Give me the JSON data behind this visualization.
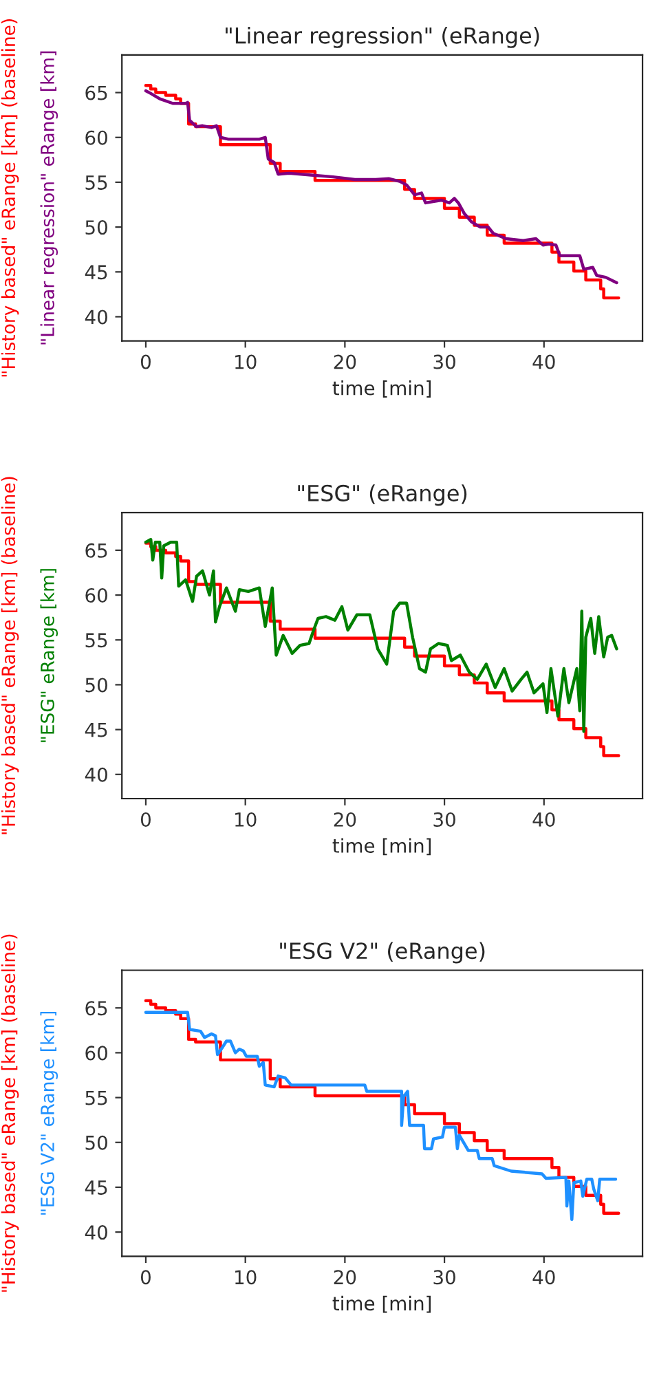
{
  "chart_data": [
    {
      "type": "line",
      "title": "\"Linear regression\" (eRange)",
      "xlabel": "time [min]",
      "xlim": [
        -2.4,
        49.9
      ],
      "ylim": [
        37.3,
        69.2
      ],
      "xticks": [
        0,
        10,
        20,
        30,
        40
      ],
      "yticks": [
        40,
        45,
        50,
        55,
        60,
        65
      ],
      "series": [
        {
          "name": "\"History based\" eRange [km] (baseline)",
          "type": "step",
          "color": "#ff0000",
          "x": [
            0,
            0.5,
            1,
            2,
            3,
            3.5,
            4.3,
            5,
            7.5,
            12.5,
            13.5,
            17,
            26,
            27,
            30,
            31.5,
            33,
            34.3,
            36,
            40.8,
            41.5,
            43,
            44.2,
            45.7,
            46,
            47.5
          ],
          "values": [
            65.8,
            65.4,
            65.0,
            64.7,
            64.3,
            63.8,
            61.5,
            61.2,
            59.2,
            57.1,
            56.2,
            55.2,
            54.2,
            53.2,
            52.1,
            51.1,
            50.2,
            49.1,
            48.2,
            47.2,
            46.1,
            45.1,
            44.1,
            43.1,
            42.1,
            42.1
          ]
        },
        {
          "name": "\"Linear regression\" eRange [km]",
          "color": "#800080",
          "x": [
            0,
            0.5,
            1.4,
            2.7,
            4,
            4.2,
            4.4,
            5.1,
            5.7,
            6.6,
            7.1,
            7.5,
            8.3,
            10.1,
            11.4,
            12,
            12.3,
            12.9,
            13.3,
            14.4,
            16.6,
            18.8,
            21,
            23.1,
            24.4,
            25.5,
            26.2,
            27,
            27.7,
            28.1,
            29.7,
            30.5,
            31,
            31.4,
            32,
            32.7,
            33.6,
            34.4,
            34.9,
            36.2,
            37.9,
            39.2,
            39.9,
            40.5,
            41.2,
            41.6,
            43.1,
            43.6,
            44,
            44.9,
            45.3,
            46.2,
            47.3
          ],
          "values": [
            65.2,
            64.9,
            64.3,
            63.8,
            63.8,
            63.9,
            61.9,
            61.2,
            61.3,
            61.1,
            61.3,
            60.0,
            59.8,
            59.8,
            59.8,
            60.0,
            57.6,
            57.2,
            55.9,
            56.0,
            55.8,
            55.6,
            55.3,
            55.3,
            55.4,
            55.1,
            54.7,
            53.6,
            53.8,
            52.7,
            53.0,
            52.7,
            53.2,
            52.7,
            51.5,
            50.6,
            50.0,
            50.0,
            49.3,
            48.7,
            48.5,
            48.7,
            48.0,
            48.1,
            48.0,
            46.8,
            46.8,
            46.8,
            45.3,
            45.5,
            44.6,
            44.4,
            43.8
          ]
        }
      ]
    },
    {
      "type": "line",
      "title": "\"ESG\" (eRange)",
      "xlabel": "time [min]",
      "xlim": [
        -2.4,
        49.9
      ],
      "ylim": [
        37.3,
        69.2
      ],
      "xticks": [
        0,
        10,
        20,
        30,
        40
      ],
      "yticks": [
        40,
        45,
        50,
        55,
        60,
        65
      ],
      "series": [
        {
          "name": "\"History based\" eRange [km] (baseline)",
          "type": "step",
          "color": "#ff0000",
          "x": [
            0,
            0.5,
            1,
            2,
            3,
            3.5,
            4.3,
            5,
            7.5,
            12.5,
            13.5,
            17,
            26,
            27,
            30,
            31.5,
            33,
            34.3,
            36,
            40.8,
            41.5,
            43,
            44.2,
            45.7,
            46,
            47.5
          ],
          "values": [
            65.8,
            65.4,
            65.0,
            64.7,
            64.3,
            63.8,
            61.5,
            61.2,
            59.2,
            57.1,
            56.2,
            55.2,
            54.2,
            53.2,
            52.1,
            51.1,
            50.2,
            49.1,
            48.2,
            47.2,
            46.1,
            45.1,
            44.1,
            43.1,
            42.1,
            42.1
          ]
        },
        {
          "name": "\"ESG\" eRange [km]",
          "color": "#008000",
          "x": [
            0,
            0.5,
            0.7,
            0.96,
            1.4,
            1.6,
            1.8,
            2.5,
            3.1,
            3.3,
            4,
            4.7,
            5.1,
            5.7,
            6.4,
            6.8,
            7,
            7.4,
            8.1,
            9,
            9.4,
            10.3,
            11.4,
            12,
            12.7,
            13.1,
            13.8,
            14.7,
            15.5,
            16.4,
            16.8,
            17.3,
            18.1,
            19,
            19.7,
            20.3,
            21.2,
            22.5,
            23.3,
            24.2,
            24.9,
            25.5,
            26.2,
            26.8,
            27.5,
            28.1,
            28.6,
            29.4,
            30.3,
            30.7,
            31.6,
            32.5,
            33.3,
            34.2,
            35.1,
            36,
            36.8,
            37.7,
            38.3,
            39,
            39.9,
            40.3,
            40.7,
            41.4,
            42,
            42.5,
            43.3,
            43.6,
            43.8,
            44,
            44.2,
            44.7,
            45.1,
            45.5,
            46,
            46.4,
            46.8,
            47.3
          ],
          "values": [
            65.9,
            66.2,
            63.9,
            65.9,
            65.9,
            61.9,
            65.5,
            65.9,
            65.9,
            61.0,
            61.7,
            59.3,
            62.1,
            62.7,
            60.0,
            62.7,
            57.0,
            58.7,
            60.8,
            58.2,
            60.6,
            60.4,
            60.8,
            56.5,
            60.8,
            53.3,
            55.5,
            53.5,
            54.4,
            54.6,
            55.9,
            57.4,
            57.6,
            57.2,
            58.7,
            56.1,
            57.8,
            57.8,
            54.0,
            52.3,
            58.2,
            59.1,
            59.1,
            55.3,
            51.8,
            51.4,
            54.0,
            54.6,
            54.4,
            52.7,
            53.3,
            51.4,
            50.6,
            52.3,
            49.7,
            51.8,
            49.3,
            50.6,
            51.4,
            49.1,
            50.1,
            46.9,
            51.8,
            46.5,
            51.8,
            48.0,
            51.8,
            47.1,
            58.2,
            44.8,
            55.3,
            57.4,
            53.5,
            57.6,
            53.1,
            55.3,
            55.5,
            54.0
          ]
        }
      ]
    },
    {
      "type": "line",
      "title": "\"ESG V2\" (eRange)",
      "xlabel": "time [min]",
      "xlim": [
        -2.4,
        49.9
      ],
      "ylim": [
        37.3,
        69.2
      ],
      "xticks": [
        0,
        10,
        20,
        30,
        40
      ],
      "yticks": [
        40,
        45,
        50,
        55,
        60,
        65
      ],
      "series": [
        {
          "name": "\"History based\" eRange [km] (baseline)",
          "type": "step",
          "color": "#ff0000",
          "x": [
            0,
            0.5,
            1,
            2,
            3,
            3.5,
            4.3,
            5,
            7.5,
            12.5,
            13.5,
            17,
            26,
            27,
            30,
            31.5,
            33,
            34.3,
            36,
            40.8,
            41.5,
            43,
            44.2,
            45.7,
            46,
            47.5
          ],
          "values": [
            65.8,
            65.4,
            65.0,
            64.7,
            64.3,
            63.8,
            61.5,
            61.2,
            59.2,
            57.1,
            56.2,
            55.2,
            54.2,
            53.2,
            52.1,
            51.1,
            50.2,
            49.1,
            48.2,
            47.2,
            46.1,
            45.1,
            44.1,
            43.1,
            42.1,
            42.1
          ]
        },
        {
          "name": "\"ESG V2\" eRange [km]",
          "color": "#1e90ff",
          "x": [
            0,
            4.2,
            4.4,
            5.5,
            5.9,
            6.6,
            7,
            7.2,
            7.7,
            8.1,
            8.5,
            9,
            9.4,
            9.8,
            10.1,
            11.2,
            11.4,
            11.8,
            12,
            12.9,
            13.3,
            14,
            14.6,
            18.5,
            22,
            22.2,
            25.7,
            25.7,
            25.9,
            26.3,
            26.5,
            27.9,
            28,
            28.7,
            28.9,
            29.8,
            30,
            31.1,
            31.3,
            31.5,
            32.4,
            33.3,
            33.5,
            34.8,
            35,
            36.7,
            39.8,
            40.2,
            42.2,
            42.3,
            42.5,
            42.8,
            43,
            43.7,
            43.9,
            44.3,
            44.8,
            45,
            45.4,
            45.6,
            47.2
          ],
          "values": [
            64.5,
            64.5,
            62.6,
            62.4,
            61.7,
            62.1,
            61.9,
            59.8,
            60.6,
            61.3,
            61.3,
            60.0,
            60.4,
            60.2,
            59.6,
            59.6,
            58.5,
            58.9,
            56.4,
            56.2,
            57.4,
            57.2,
            56.4,
            56.4,
            56.4,
            55.7,
            55.7,
            51.9,
            55.1,
            55.7,
            51.9,
            51.9,
            49.3,
            49.3,
            50.4,
            50.6,
            51.7,
            51.7,
            49.3,
            50.8,
            49.1,
            49.1,
            48.2,
            48.2,
            47.4,
            46.8,
            46.5,
            46.0,
            46.1,
            42.9,
            45.7,
            41.4,
            45.5,
            45.7,
            44.0,
            45.9,
            45.9,
            44.8,
            43.5,
            45.9,
            45.9
          ]
        }
      ]
    }
  ]
}
